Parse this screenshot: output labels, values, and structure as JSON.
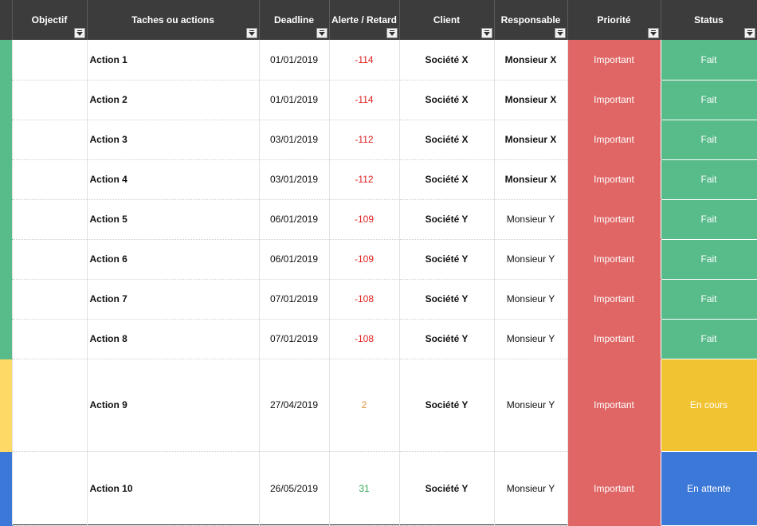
{
  "colors": {
    "header_bg": "#3c3c3c",
    "priority_important": "#e06666",
    "status_fait": "#57bb8a",
    "status_en_cours": "#f1c232",
    "status_en_attente": "#3c78d8",
    "stripe_green": "#57bb8a",
    "stripe_yellow": "#ffd966",
    "stripe_blue": "#3c78d8",
    "alert_negative": "#e02020",
    "alert_warning": "#e69138",
    "alert_positive": "#34a853"
  },
  "columns": [
    {
      "key": "objectif",
      "label": "Objectif"
    },
    {
      "key": "taches",
      "label": "Taches ou actions"
    },
    {
      "key": "deadline",
      "label": "Deadline"
    },
    {
      "key": "alerte",
      "label": "Alerte / Retard"
    },
    {
      "key": "client",
      "label": "Client"
    },
    {
      "key": "responsable",
      "label": "Responsable"
    },
    {
      "key": "priorite",
      "label": "Priorité"
    },
    {
      "key": "status",
      "label": "Status"
    }
  ],
  "rows": [
    {
      "objectif": "",
      "action": "Action 1",
      "deadline": "01/01/2019",
      "alerte": "-114",
      "client": "Société X",
      "responsable": "Monsieur X",
      "responsable_bold": true,
      "priorite": "Important",
      "status": "Fait",
      "stripe": "#57bb8a",
      "status_color": "#57bb8a",
      "alert_color": "#e02020"
    },
    {
      "objectif": "",
      "action": "Action 2",
      "deadline": "01/01/2019",
      "alerte": "-114",
      "client": "Société X",
      "responsable": "Monsieur X",
      "responsable_bold": true,
      "priorite": "Important",
      "status": "Fait",
      "stripe": "#57bb8a",
      "status_color": "#57bb8a",
      "alert_color": "#e02020"
    },
    {
      "objectif": "",
      "action": "Action 3",
      "deadline": "03/01/2019",
      "alerte": "-112",
      "client": "Société X",
      "responsable": "Monsieur X",
      "responsable_bold": true,
      "priorite": "Important",
      "status": "Fait",
      "stripe": "#57bb8a",
      "status_color": "#57bb8a",
      "alert_color": "#e02020"
    },
    {
      "objectif": "",
      "action": "Action 4",
      "deadline": "03/01/2019",
      "alerte": "-112",
      "client": "Société X",
      "responsable": "Monsieur X",
      "responsable_bold": true,
      "priorite": "Important",
      "status": "Fait",
      "stripe": "#57bb8a",
      "status_color": "#57bb8a",
      "alert_color": "#e02020"
    },
    {
      "objectif": "",
      "action": "Action 5",
      "deadline": "06/01/2019",
      "alerte": "-109",
      "client": "Société Y",
      "responsable": "Monsieur Y",
      "responsable_bold": false,
      "priorite": "Important",
      "status": "Fait",
      "stripe": "#57bb8a",
      "status_color": "#57bb8a",
      "alert_color": "#e02020"
    },
    {
      "objectif": "",
      "action": "Action 6",
      "deadline": "06/01/2019",
      "alerte": "-109",
      "client": "Société Y",
      "responsable": "Monsieur Y",
      "responsable_bold": false,
      "priorite": "Important",
      "status": "Fait",
      "stripe": "#57bb8a",
      "status_color": "#57bb8a",
      "alert_color": "#e02020"
    },
    {
      "objectif": "",
      "action": "Action 7",
      "deadline": "07/01/2019",
      "alerte": "-108",
      "client": "Société Y",
      "responsable": "Monsieur Y",
      "responsable_bold": false,
      "priorite": "Important",
      "status": "Fait",
      "stripe": "#57bb8a",
      "status_color": "#57bb8a",
      "alert_color": "#e02020"
    },
    {
      "objectif": "",
      "action": "Action 8",
      "deadline": "07/01/2019",
      "alerte": "-108",
      "client": "Société Y",
      "responsable": "Monsieur Y",
      "responsable_bold": false,
      "priorite": "Important",
      "status": "Fait",
      "stripe": "#57bb8a",
      "status_color": "#57bb8a",
      "alert_color": "#e02020"
    },
    {
      "objectif": "",
      "action": "Action 9",
      "deadline": "27/04/2019",
      "alerte": "2",
      "client": "Société Y",
      "responsable": "Monsieur Y",
      "responsable_bold": false,
      "priorite": "Important",
      "status": "En cours",
      "stripe": "#ffd966",
      "status_color": "#f1c232",
      "alert_color": "#e69138"
    },
    {
      "objectif": "",
      "action": "Action 10",
      "deadline": "26/05/2019",
      "alerte": "31",
      "client": "Société Y",
      "responsable": "Monsieur Y",
      "responsable_bold": false,
      "priorite": "Important",
      "status": "En attente",
      "stripe": "#3c78d8",
      "status_color": "#3c78d8",
      "alert_color": "#34a853"
    }
  ]
}
